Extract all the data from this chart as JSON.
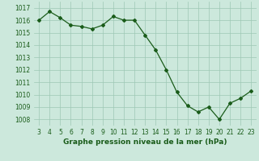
{
  "x": [
    3,
    4,
    5,
    6,
    7,
    8,
    9,
    10,
    11,
    12,
    13,
    14,
    15,
    16,
    17,
    18,
    19,
    20,
    21,
    22,
    23
  ],
  "y": [
    1016.0,
    1016.7,
    1016.2,
    1015.6,
    1015.5,
    1015.3,
    1015.6,
    1016.3,
    1016.0,
    1016.0,
    1014.8,
    1013.6,
    1012.0,
    1010.2,
    1009.1,
    1008.6,
    1009.0,
    1008.0,
    1009.3,
    1009.7,
    1010.3
  ],
  "line_color": "#1a5c1a",
  "marker": "D",
  "marker_size": 2.0,
  "line_width": 0.9,
  "bg_color": "#cce8dc",
  "grid_color": "#9ec8b4",
  "xlabel": "Graphe pression niveau de la mer (hPa)",
  "xlabel_color": "#1a5c1a",
  "xlabel_fontsize": 6.5,
  "tick_color": "#1a5c1a",
  "tick_fontsize": 5.5,
  "ylim": [
    1007.5,
    1017.5
  ],
  "yticks": [
    1008,
    1009,
    1010,
    1011,
    1012,
    1013,
    1014,
    1015,
    1016,
    1017
  ],
  "xlim": [
    2.5,
    23.5
  ],
  "xticks": [
    3,
    4,
    5,
    6,
    7,
    8,
    9,
    10,
    11,
    12,
    13,
    14,
    15,
    16,
    17,
    18,
    19,
    20,
    21,
    22,
    23
  ]
}
